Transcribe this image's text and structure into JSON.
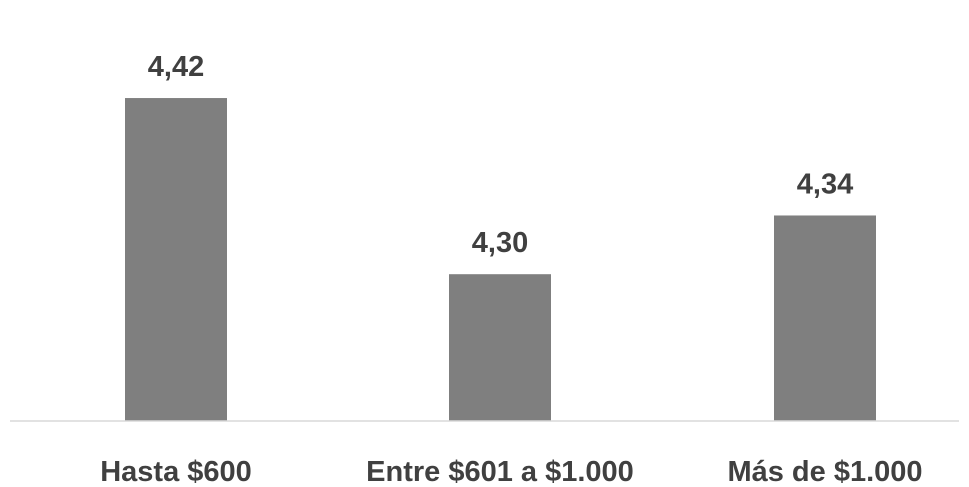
{
  "chart_data": {
    "type": "bar",
    "title": "",
    "categories": [
      "Hasta $600",
      "Entre $601 a $1.000",
      "Más de $1.000"
    ],
    "values": [
      4.42,
      4.3,
      4.34
    ],
    "value_labels": [
      "4,42",
      "4,30",
      "4,34"
    ],
    "xlabel": "",
    "ylabel": "",
    "ylim": [
      4.2,
      4.45
    ],
    "grid": false,
    "legend": "none",
    "colors": {
      "bar": "#7f7f7f",
      "text": "#404040",
      "axis": "#d9d9d9"
    }
  }
}
